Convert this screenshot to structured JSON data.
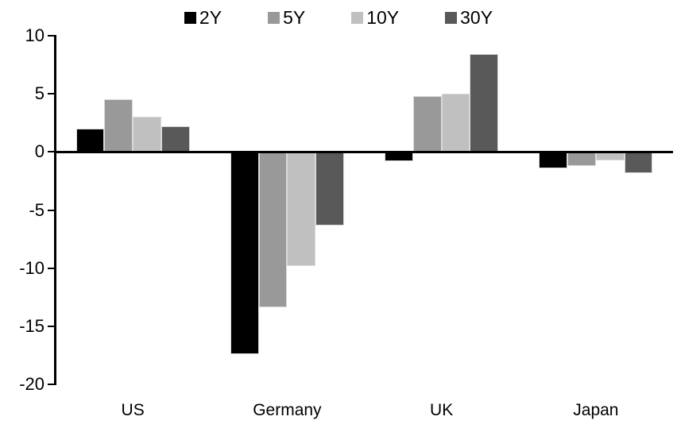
{
  "chart_data": {
    "type": "bar",
    "categories": [
      "US",
      "Germany",
      "UK",
      "Japan"
    ],
    "series": [
      {
        "name": "2Y",
        "color": "#000000",
        "values": [
          2.0,
          -17.4,
          -0.8,
          -1.4
        ]
      },
      {
        "name": "5Y",
        "color": "#999999",
        "values": [
          4.5,
          -13.4,
          4.8,
          -1.2
        ]
      },
      {
        "name": "10Y",
        "color": "#c0c0c0",
        "values": [
          3.0,
          -9.8,
          5.0,
          -0.7
        ]
      },
      {
        "name": "30Y",
        "color": "#595959",
        "values": [
          2.2,
          -6.3,
          8.4,
          -1.8
        ]
      }
    ],
    "ylim": [
      -20,
      10
    ],
    "yticks": [
      10,
      5,
      0,
      -5,
      -10,
      -15,
      -20
    ],
    "xlabel": "",
    "ylabel": "",
    "title": "",
    "legend_position": "top-center",
    "grid": false,
    "axis_color": "#000000",
    "background_color": "#ffffff"
  }
}
